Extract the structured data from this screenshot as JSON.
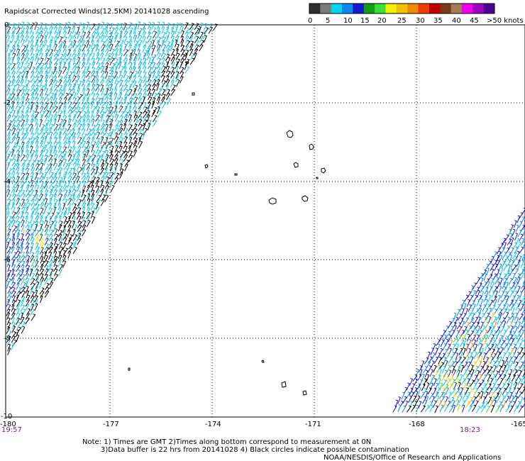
{
  "header": {
    "title": "Rapidscat Corrected Winds(12.5KM) 20141028 ascending"
  },
  "colorbar": {
    "labels": [
      "0",
      "5",
      "10",
      "15",
      "20",
      "25",
      "30",
      "35",
      "40",
      "45",
      ">50 knots"
    ],
    "colors": [
      "#303030",
      "#7a7a7a",
      "#00d6f0",
      "#0a88f0",
      "#1818d0",
      "#10a010",
      "#38e038",
      "#f0f000",
      "#f0c000",
      "#f08a00",
      "#f03c00",
      "#c00000",
      "#7a3a18",
      "#a87a5a",
      "#f000f0",
      "#a000c0",
      "#500090"
    ]
  },
  "map": {
    "x_ticks": [
      "-180",
      "-177",
      "-174",
      "-171",
      "-168",
      "-165"
    ],
    "y_ticks": [
      "0",
      "-2",
      "-4",
      "-6",
      "-8",
      "-10"
    ],
    "lon_range": [
      -180,
      -165
    ],
    "lat_range": [
      -10,
      0
    ],
    "time_left": "19:57",
    "time_right": "18:23"
  },
  "footer": {
    "note_line1": "Note: 1) Times are GMT 2)Times along bottom correspond to measurement at 0N",
    "note_line2": "3)Data buffer is 22 hrs from 20141028 4) Black circles indicate possible contamination",
    "credit": "NOAA/NESDIS/Office of Research and Applications"
  }
}
